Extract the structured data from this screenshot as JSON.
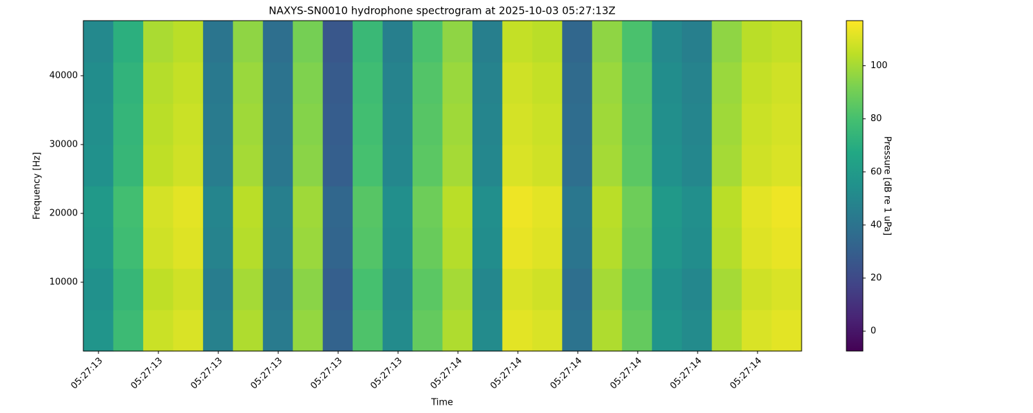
{
  "chart_data": {
    "type": "heatmap",
    "title": "NAXYS-SN0010 hydrophone spectrogram at 2025-10-03 05:27:13Z",
    "xlabel": "Time",
    "ylabel": "Frequency [Hz]",
    "colorbar_label": "Pressure [dB re 1 uPa]",
    "colormap": "viridis",
    "xtick_labels": [
      "05:27:13",
      "05:27:13",
      "05:27:13",
      "05:27:13",
      "05:27:13",
      "05:27:13",
      "05:27:14",
      "05:27:14",
      "05:27:14",
      "05:27:14",
      "05:27:14",
      "05:27:14"
    ],
    "ylim": [
      0,
      48000
    ],
    "yticks": [
      10000,
      20000,
      30000,
      40000
    ],
    "clim": [
      -7.5,
      117
    ],
    "cticks": [
      0,
      20,
      40,
      60,
      80,
      100
    ],
    "values": [
      [
        57,
        77,
        107,
        110,
        47,
        102,
        44,
        97,
        32,
        82,
        52,
        87,
        102,
        52,
        112,
        110,
        40,
        102,
        87,
        57,
        52,
        102,
        110,
        112
      ],
      [
        55,
        75,
        105,
        108,
        45,
        100,
        42,
        95,
        30,
        80,
        50,
        85,
        100,
        50,
        110,
        108,
        38,
        100,
        85,
        55,
        50,
        100,
        108,
        110
      ],
      [
        58,
        78,
        108,
        111,
        48,
        103,
        45,
        98,
        33,
        83,
        53,
        88,
        103,
        53,
        113,
        111,
        41,
        103,
        88,
        58,
        53,
        103,
        111,
        113
      ],
      [
        59,
        79,
        109,
        112,
        49,
        104,
        46,
        99,
        34,
        84,
        54,
        89,
        104,
        54,
        114,
        112,
        42,
        104,
        89,
        59,
        54,
        104,
        112,
        114
      ],
      [
        55,
        75,
        105,
        108,
        45,
        100,
        42,
        95,
        30,
        80,
        50,
        85,
        100,
        50,
        110,
        108,
        38,
        100,
        85,
        55,
        50,
        100,
        108,
        110
      ],
      [
        54,
        74,
        104,
        107,
        44,
        99,
        41,
        94,
        29,
        79,
        49,
        84,
        99,
        49,
        109,
        107,
        37,
        99,
        84,
        54,
        49,
        99,
        107,
        109
      ],
      [
        53,
        73,
        103,
        106,
        43,
        98,
        40,
        93,
        28,
        78,
        48,
        83,
        98,
        48,
        108,
        106,
        36,
        98,
        83,
        53,
        48,
        98,
        106,
        108
      ],
      [
        51,
        71,
        101,
        104,
        41,
        96,
        38,
        91,
        26,
        76,
        46,
        81,
        96,
        46,
        106,
        104,
        34,
        96,
        81,
        51,
        46,
        96,
        104,
        106
      ]
    ]
  }
}
